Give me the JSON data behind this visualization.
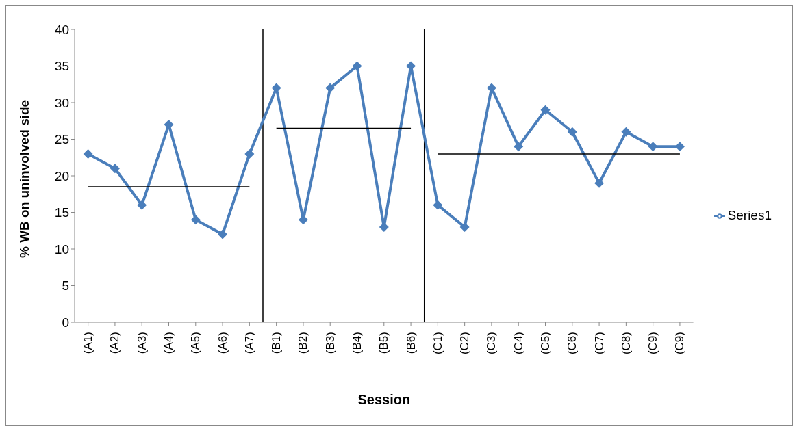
{
  "chart_data": {
    "type": "line",
    "xlabel": "Session",
    "ylabel": "% WB on uninvolved side",
    "categories": [
      "(A1)",
      "(A2)",
      "(A3)",
      "(A4)",
      "(A5)",
      "(A6)",
      "(A7)",
      "(B1)",
      "(B2)",
      "(B3)",
      "(B4)",
      "(B5)",
      "(B6)",
      "(C1)",
      "(C2)",
      "(C3)",
      "(C4)",
      "(C5)",
      "(C6)",
      "(C7)",
      "(C8)",
      "(C9)",
      "(C9)"
    ],
    "series": [
      {
        "name": "Series1",
        "color": "#4a7ebb",
        "marker": "diamond",
        "values": [
          23,
          21,
          16,
          27,
          14,
          12,
          23,
          32,
          14,
          32,
          35,
          13,
          35,
          16,
          13,
          32,
          24,
          29,
          26,
          19,
          26,
          24,
          24
        ]
      },
      {
        "type": "line",
        "color": "#000000",
        "marker": "none",
        "values": [
          18.5,
          18.5,
          18.5,
          18.5,
          18.5,
          18.5,
          18.5,
          null,
          null,
          null,
          null,
          null,
          null,
          null,
          null,
          null,
          null,
          null,
          null,
          null,
          null,
          null,
          null
        ]
      },
      {
        "type": "line",
        "color": "#000000",
        "marker": "none",
        "values": [
          null,
          null,
          null,
          null,
          null,
          null,
          null,
          26.5,
          26.5,
          26.5,
          26.5,
          26.5,
          26.5,
          null,
          null,
          null,
          null,
          null,
          null,
          null,
          null,
          null,
          null
        ]
      },
      {
        "type": "line",
        "color": "#000000",
        "marker": "none",
        "values": [
          null,
          null,
          null,
          null,
          null,
          null,
          null,
          null,
          null,
          null,
          null,
          null,
          null,
          23,
          23,
          23,
          23,
          23,
          23,
          23,
          23,
          23,
          23
        ]
      }
    ],
    "ref_lines": [
      {
        "axis": "x",
        "value": "(B1)",
        "color": "#000000"
      },
      {
        "axis": "x",
        "value": "(C1)",
        "color": "#000000"
      }
    ],
    "ylim": [
      0,
      40
    ],
    "yticks": [
      0,
      5,
      10,
      15,
      20,
      25,
      30,
      35,
      40
    ],
    "legend": "right"
  }
}
